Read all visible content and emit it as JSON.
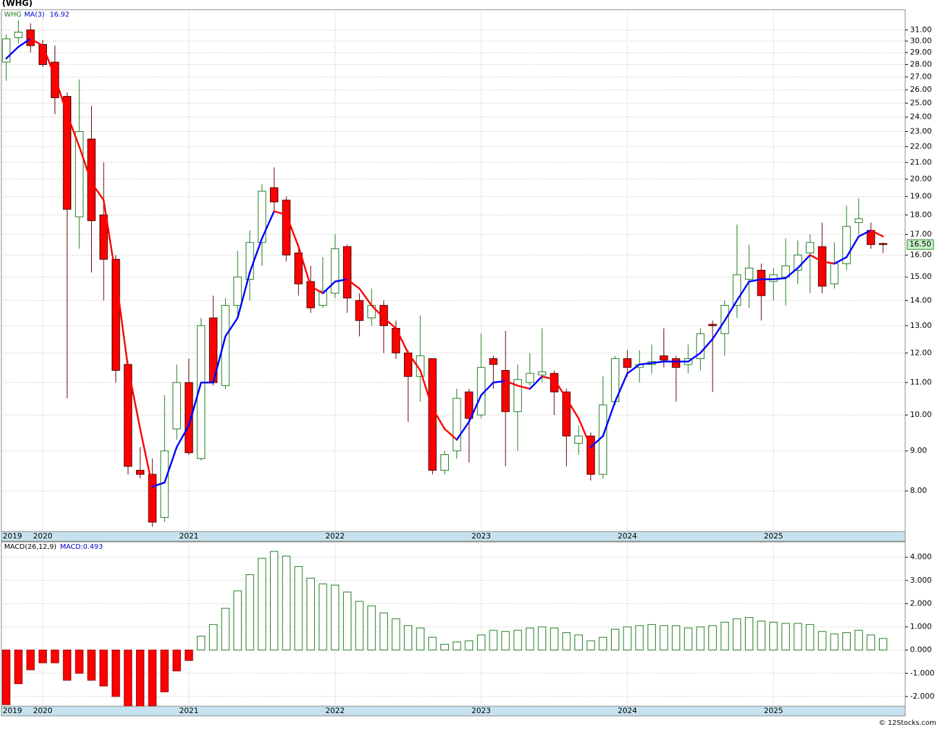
{
  "title": "(WHG)",
  "footer": "© 12Stocks.com",
  "chart_data": [
    {
      "type": "candlestick",
      "legend": {
        "symbol": "WHG",
        "ma_name": "MA(3)",
        "ma_value": {
          "value": 16.92,
          "label": "16.92"
        }
      },
      "categories": [
        "2019",
        null,
        null,
        "2020",
        null,
        null,
        null,
        null,
        null,
        null,
        null,
        null,
        null,
        null,
        null,
        "2021",
        null,
        null,
        null,
        null,
        null,
        null,
        null,
        null,
        null,
        null,
        null,
        "2022",
        null,
        null,
        null,
        null,
        null,
        null,
        null,
        null,
        null,
        null,
        null,
        "2023",
        null,
        null,
        null,
        null,
        null,
        null,
        null,
        null,
        null,
        null,
        null,
        "2024",
        null,
        null,
        null,
        null,
        null,
        null,
        null,
        null,
        null,
        null,
        null,
        "2025",
        null,
        null,
        null,
        null,
        null,
        null,
        null,
        null,
        null
      ],
      "open": [
        28.2,
        30.3,
        31.0,
        29.7,
        28.2,
        25.5,
        17.9,
        22.5,
        18.0,
        15.8,
        11.6,
        8.5,
        8.4,
        7.4,
        9.6,
        11.0,
        8.8,
        13.3,
        10.9,
        13.8,
        14.9,
        16.6,
        19.5,
        18.8,
        16.1,
        14.8,
        13.8,
        14.3,
        16.4,
        14.0,
        13.3,
        13.8,
        12.9,
        12.0,
        11.2,
        11.8,
        8.5,
        9.0,
        10.7,
        10.0,
        11.8,
        11.4,
        10.1,
        11.0,
        11.25,
        11.3,
        10.7,
        9.2,
        9.4,
        8.4,
        10.4,
        11.8,
        11.5,
        11.6,
        11.9,
        11.8,
        11.6,
        11.8,
        13.05,
        12.7,
        13.8,
        14.9,
        15.3,
        14.8,
        15.0,
        15.3,
        16.1,
        16.4,
        14.7,
        15.6,
        17.6,
        17.2,
        16.55
      ],
      "high": [
        30.6,
        31.9,
        31.6,
        30.1,
        29.6,
        25.8,
        26.8,
        24.8,
        21.0,
        16.0,
        11.7,
        9.1,
        8.8,
        10.6,
        11.6,
        11.8,
        13.3,
        14.2,
        14.1,
        16.2,
        17.2,
        19.7,
        20.7,
        19.0,
        16.4,
        15.5,
        15.9,
        17.0,
        16.5,
        14.3,
        14.5,
        14.0,
        13.2,
        12.1,
        13.4,
        11.8,
        9.0,
        10.8,
        10.8,
        12.7,
        11.9,
        12.8,
        11.6,
        12.0,
        12.9,
        11.4,
        10.8,
        9.7,
        9.5,
        11.2,
        11.9,
        12.1,
        12.1,
        12.3,
        12.9,
        11.9,
        12.3,
        12.9,
        13.2,
        14.0,
        17.5,
        16.5,
        15.6,
        15.4,
        16.8,
        16.7,
        17.0,
        17.6,
        16.6,
        18.5,
        18.9,
        17.6,
        16.6
      ],
      "low": [
        26.7,
        29.8,
        29.0,
        27.8,
        24.2,
        10.5,
        16.3,
        15.2,
        14.0,
        11.0,
        8.4,
        8.3,
        7.2,
        7.3,
        9.3,
        8.9,
        8.75,
        10.9,
        10.8,
        13.3,
        14.0,
        15.5,
        18.1,
        15.7,
        14.2,
        13.5,
        13.7,
        14.1,
        13.5,
        12.6,
        13.0,
        12.0,
        11.8,
        9.8,
        10.4,
        8.4,
        8.4,
        8.8,
        8.7,
        9.9,
        10.8,
        8.6,
        9.0,
        10.9,
        11.0,
        10.0,
        8.6,
        8.9,
        8.25,
        8.3,
        10.3,
        11.2,
        11.0,
        11.3,
        11.5,
        10.4,
        11.3,
        11.4,
        10.7,
        11.9,
        13.3,
        13.7,
        13.2,
        14.0,
        13.8,
        14.7,
        14.3,
        14.3,
        14.5,
        15.3,
        17.0,
        16.3,
        16.1
      ],
      "close": [
        30.2,
        30.8,
        29.6,
        28.0,
        25.4,
        18.3,
        23.0,
        17.7,
        15.8,
        11.4,
        8.6,
        8.4,
        7.3,
        9.0,
        11.0,
        8.95,
        13.0,
        11.0,
        13.8,
        15.0,
        16.6,
        19.3,
        18.7,
        16.0,
        14.7,
        13.7,
        14.4,
        16.3,
        14.1,
        13.2,
        13.8,
        13.0,
        12.0,
        11.2,
        11.9,
        8.5,
        8.9,
        10.5,
        9.9,
        11.5,
        11.6,
        10.1,
        11.1,
        11.3,
        11.35,
        10.7,
        9.4,
        9.4,
        8.4,
        10.3,
        11.8,
        11.5,
        11.6,
        11.7,
        11.75,
        11.5,
        11.8,
        12.7,
        13.0,
        13.8,
        15.1,
        15.4,
        14.2,
        15.1,
        15.5,
        16.0,
        16.6,
        14.6,
        15.6,
        17.4,
        17.8,
        16.5,
        16.5
      ],
      "ma": [
        28.5,
        29.5,
        30.2,
        29.6,
        27.0,
        24.2,
        22.0,
        19.8,
        18.8,
        15.0,
        11.5,
        9.6,
        8.1,
        8.2,
        9.1,
        9.7,
        11.0,
        11.0,
        12.6,
        13.3,
        15.2,
        16.8,
        18.2,
        18.0,
        16.4,
        14.6,
        14.3,
        14.8,
        14.9,
        14.5,
        13.8,
        13.3,
        12.9,
        12.0,
        11.4,
        10.2,
        9.6,
        9.3,
        9.8,
        10.6,
        11.0,
        11.05,
        10.9,
        10.8,
        11.2,
        11.1,
        10.5,
        9.9,
        9.1,
        9.4,
        10.4,
        11.3,
        11.6,
        11.65,
        11.7,
        11.7,
        11.7,
        12.0,
        12.5,
        13.2,
        14.0,
        14.8,
        14.9,
        14.9,
        14.95,
        15.4,
        16.0,
        15.7,
        15.6,
        15.9,
        16.9,
        17.2,
        16.9
      ],
      "up_color": "#1e7b1e",
      "down_color": "#ff0000",
      "ma_up_color": "#0000ff",
      "ma_down_color": "#ff0000",
      "last_price": {
        "value": 16.5,
        "label": "16.50"
      },
      "log_scale": true,
      "grid": true,
      "ylim": [
        7.1,
        32.9
      ],
      "yticks": [
        {
          "value": 8,
          "label": "8.00"
        },
        {
          "value": 9,
          "label": "9.00"
        },
        {
          "value": 10,
          "label": "10.00"
        },
        {
          "value": 11,
          "label": "11.00"
        },
        {
          "value": 12,
          "label": "12.00"
        },
        {
          "value": 13,
          "label": "13.00"
        },
        {
          "value": 14,
          "label": "14.00"
        },
        {
          "value": 15,
          "label": "15.00"
        },
        {
          "value": 16,
          "label": "16.00"
        },
        {
          "value": 17,
          "label": "17.00"
        },
        {
          "value": 18,
          "label": "18.00"
        },
        {
          "value": 19,
          "label": "19.00"
        },
        {
          "value": 20,
          "label": "20.00"
        },
        {
          "value": 21,
          "label": "21.00"
        },
        {
          "value": 22,
          "label": "22.00"
        },
        {
          "value": 23,
          "label": "23.00"
        },
        {
          "value": 24,
          "label": "24.00"
        },
        {
          "value": 25,
          "label": "25.00"
        },
        {
          "value": 26,
          "label": "26.00"
        },
        {
          "value": 27,
          "label": "27.00"
        },
        {
          "value": 28,
          "label": "28.00"
        },
        {
          "value": 29,
          "label": "29.00"
        },
        {
          "value": 30,
          "label": "30.00"
        },
        {
          "value": 31,
          "label": "31.00"
        }
      ]
    },
    {
      "type": "bar",
      "legend": {
        "name": "MACD(26,12,9)",
        "value": "MACD:0.493"
      },
      "values": [
        -2.35,
        -1.45,
        -0.85,
        -0.55,
        -0.55,
        -1.3,
        -1.0,
        -1.3,
        -1.55,
        -2.0,
        -2.5,
        -2.5,
        -2.4,
        -1.8,
        -0.9,
        -0.45,
        0.6,
        1.1,
        1.8,
        2.55,
        3.25,
        3.95,
        4.25,
        4.05,
        3.6,
        3.1,
        2.85,
        2.8,
        2.5,
        2.1,
        1.9,
        1.6,
        1.35,
        1.05,
        0.95,
        0.55,
        0.25,
        0.35,
        0.4,
        0.65,
        0.85,
        0.8,
        0.85,
        0.95,
        1.0,
        0.95,
        0.75,
        0.65,
        0.4,
        0.55,
        0.9,
        1.0,
        1.05,
        1.1,
        1.05,
        1.05,
        0.95,
        1.0,
        1.05,
        1.2,
        1.35,
        1.4,
        1.25,
        1.2,
        1.15,
        1.15,
        1.1,
        0.8,
        0.7,
        0.75,
        0.85,
        0.65,
        0.5
      ],
      "up_color": "#1e7b1e",
      "down_color": "#ff0000",
      "grid": true,
      "ylim": [
        -2.42,
        4.66
      ],
      "yticks": [
        {
          "value": -2,
          "label": "-2.000"
        },
        {
          "value": -1,
          "label": "-1.000"
        },
        {
          "value": 0,
          "label": "0.000"
        },
        {
          "value": 1,
          "label": "1.000"
        },
        {
          "value": 2,
          "label": "2.000"
        },
        {
          "value": 3,
          "label": "3.000"
        },
        {
          "value": 4,
          "label": "4.000"
        }
      ]
    }
  ]
}
